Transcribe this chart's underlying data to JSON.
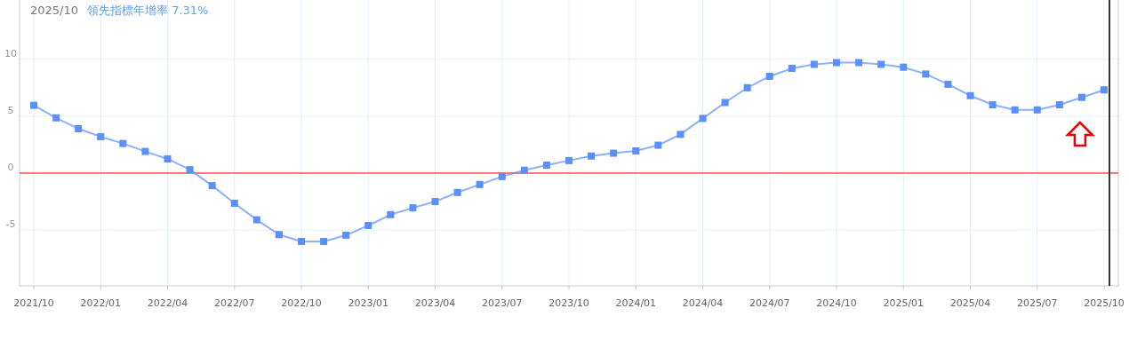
{
  "chart_data": {
    "type": "line",
    "title": "2025/10",
    "subtitle": "領先指標年增率 7.31%",
    "categories": [
      "2021/10",
      null,
      null,
      "2022/01",
      null,
      null,
      "2022/04",
      null,
      null,
      "2022/07",
      null,
      null,
      "2022/10",
      null,
      null,
      "2023/01",
      null,
      null,
      "2023/04",
      null,
      null,
      "2023/07",
      null,
      null,
      "2023/10",
      null,
      null,
      "2024/01",
      null,
      null,
      "2024/04",
      null,
      null,
      "2024/07",
      null,
      null,
      "2024/10",
      null,
      null,
      "2025/01",
      null,
      null,
      "2025/04",
      null,
      null,
      "2025/07",
      null,
      null,
      "2025/10"
    ],
    "series": [
      {
        "color": "#5b8ff9",
        "values": [
          5.95,
          4.85,
          3.9,
          3.2,
          2.6,
          1.9,
          1.25,
          0.3,
          -1.1,
          -2.65,
          -4.1,
          -5.4,
          -6.0,
          -6.0,
          -5.45,
          -4.6,
          -3.65,
          -3.05,
          -2.5,
          -1.7,
          -1.0,
          -0.3,
          0.25,
          0.7,
          1.1,
          1.5,
          1.75,
          1.95,
          2.45,
          3.4,
          4.8,
          6.2,
          7.5,
          8.5,
          9.2,
          9.55,
          9.7,
          9.7,
          9.55,
          9.3,
          8.7,
          7.8,
          6.8,
          6.0,
          5.55,
          5.55,
          6.0,
          6.65,
          7.31
        ]
      }
    ],
    "ylim": [
      -9.9,
      15.2
    ],
    "yticks": [
      -5,
      0,
      5,
      10
    ],
    "grid": true,
    "marker": "square",
    "line_style": "solid",
    "ref_lines": [
      {
        "axis": "y",
        "value": 0,
        "color": "#ff0000"
      },
      {
        "axis": "x",
        "value": "2025/10",
        "color": "#333333"
      }
    ]
  }
}
